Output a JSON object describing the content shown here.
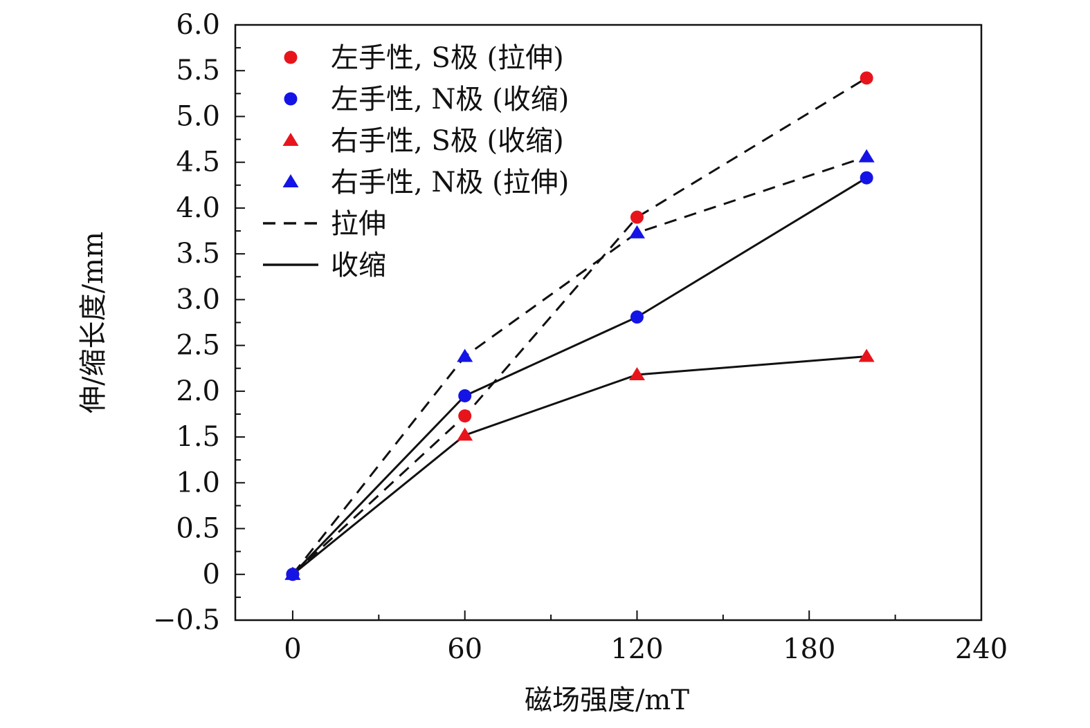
{
  "chart_data": {
    "type": "line",
    "title": "",
    "xlabel": "磁场强度/mT",
    "ylabel": "伸/缩长度/mm",
    "xlim": [
      -20,
      240
    ],
    "ylim": [
      -0.5,
      6.0
    ],
    "xticks": [
      0,
      60,
      120,
      180,
      240
    ],
    "xtick_labels": [
      "0",
      "60",
      "120",
      "180",
      "240"
    ],
    "yticks": [
      -0.5,
      0,
      0.5,
      1.0,
      1.5,
      2.0,
      2.5,
      3.0,
      3.5,
      4.0,
      4.5,
      5.0,
      5.5,
      6.0
    ],
    "ytick_labels": [
      "−0.5",
      "0",
      "0.5",
      "1.0",
      "1.5",
      "2.0",
      "2.5",
      "3.0",
      "3.5",
      "4.0",
      "4.5",
      "5.0",
      "5.5",
      "6.0"
    ],
    "grid": false,
    "legend_position": "top-left",
    "series": [
      {
        "name": "左手性, S极 (拉伸)",
        "marker": "circle",
        "color": "#e8141c",
        "line": "dashed",
        "x": [
          0,
          60,
          120,
          200
        ],
        "y": [
          0,
          1.73,
          3.9,
          5.42
        ]
      },
      {
        "name": "左手性, N极 (收缩)",
        "marker": "circle",
        "color": "#1414e6",
        "line": "solid",
        "x": [
          0,
          60,
          120,
          200
        ],
        "y": [
          0,
          1.95,
          2.81,
          4.33
        ]
      },
      {
        "name": "右手性, S极 (收缩)",
        "marker": "triangle",
        "color": "#e8141c",
        "line": "solid",
        "x": [
          0,
          60,
          120,
          200
        ],
        "y": [
          0,
          1.52,
          2.18,
          2.38
        ]
      },
      {
        "name": "右手性, N极 (拉伸)",
        "marker": "triangle",
        "color": "#1414e6",
        "line": "dashed",
        "x": [
          0,
          60,
          120,
          200
        ],
        "y": [
          0,
          2.38,
          3.73,
          4.56
        ]
      }
    ],
    "line_legend": [
      {
        "name": "拉伸",
        "line": "dashed"
      },
      {
        "name": "收缩",
        "line": "solid"
      }
    ]
  }
}
